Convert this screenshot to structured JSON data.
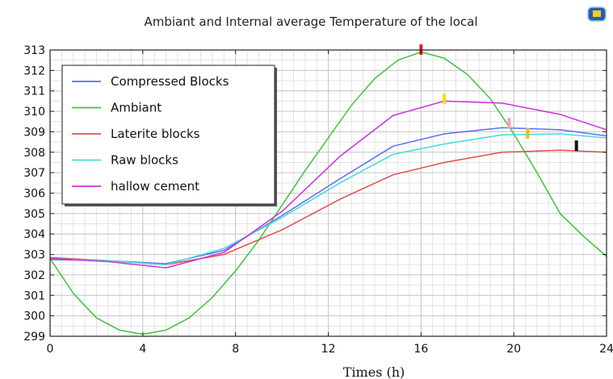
{
  "chart_data": {
    "type": "line",
    "title": "Ambiant  and Internal average Temperature of the local",
    "xlabel": "Times (h)",
    "ylabel": "",
    "xlim": [
      0,
      24
    ],
    "ylim": [
      299,
      313
    ],
    "xticks": [
      0,
      4,
      8,
      12,
      16,
      20,
      24
    ],
    "yticks": [
      299,
      300,
      301,
      302,
      303,
      304,
      305,
      306,
      307,
      308,
      309,
      310,
      311,
      312,
      313
    ],
    "grid": true,
    "legend_position": "top-left",
    "series": [
      {
        "name": "Compressed Blocks",
        "color": "#5b6ef0",
        "x": [
          0,
          2.5,
          5,
          7.5,
          10,
          12.5,
          14.8,
          17,
          19.5,
          22,
          24
        ],
        "y": [
          302.75,
          302.7,
          302.55,
          303.2,
          304.9,
          306.7,
          308.3,
          308.9,
          309.2,
          309.1,
          308.8
        ]
      },
      {
        "name": "Ambiant",
        "color": "#3cc43c",
        "x": [
          0,
          1,
          2,
          3,
          4,
          5,
          6,
          7,
          8,
          9,
          10,
          11,
          12,
          13,
          14,
          15,
          16,
          17,
          18,
          19,
          20,
          21,
          22,
          23,
          24
        ],
        "y": [
          302.8,
          301.1,
          299.9,
          299.3,
          299.1,
          299.3,
          299.9,
          300.9,
          302.2,
          303.7,
          305.4,
          307.1,
          308.7,
          310.3,
          311.6,
          312.5,
          312.9,
          312.6,
          311.8,
          310.6,
          308.9,
          307.0,
          305.0,
          303.9,
          302.9
        ]
      },
      {
        "name": "Laterite blocks",
        "color": "#e0504a",
        "x": [
          0,
          2.5,
          5,
          7.5,
          10,
          12.5,
          14.8,
          17,
          19.5,
          22,
          24
        ],
        "y": [
          302.85,
          302.7,
          302.5,
          303.0,
          304.2,
          305.7,
          306.9,
          307.5,
          308.0,
          308.1,
          308.0
        ]
      },
      {
        "name": "Raw blocks",
        "color": "#40dcdc",
        "x": [
          0,
          2.5,
          5,
          7.5,
          10,
          12.5,
          14.8,
          17,
          19.5,
          22,
          24
        ],
        "y": [
          302.8,
          302.7,
          302.5,
          303.3,
          304.8,
          306.5,
          307.9,
          308.4,
          308.85,
          308.9,
          308.7
        ]
      },
      {
        "name": "hallow cement",
        "color": "#cc33d6",
        "x": [
          0,
          2.5,
          5,
          7.5,
          10,
          12.5,
          14.8,
          17,
          19.5,
          22,
          24
        ],
        "y": [
          302.8,
          302.65,
          302.35,
          303.1,
          305.1,
          307.8,
          309.8,
          310.5,
          310.4,
          309.85,
          309.1
        ]
      }
    ],
    "markers": [
      {
        "x": 16,
        "y": 313,
        "color": "#e02020"
      },
      {
        "x": 17,
        "y": 310.6,
        "color": "#f0e010"
      },
      {
        "x": 19.8,
        "y": 309.4,
        "color": "#f5a0c0"
      },
      {
        "x": 20.6,
        "y": 308.9,
        "color": "#f0c010"
      },
      {
        "x": 22.7,
        "y": 308.3,
        "color": "#111111"
      }
    ]
  },
  "toolbar": {
    "icon": "screen-icon"
  }
}
